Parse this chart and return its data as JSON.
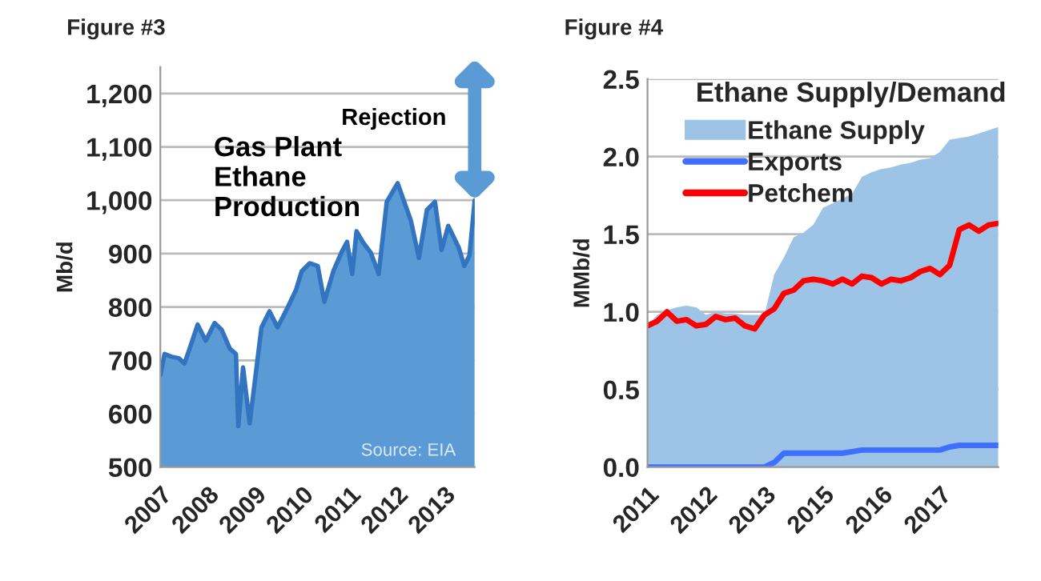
{
  "chart_data": [
    {
      "type": "area",
      "title": "Figure #3",
      "ylabel": "Mb/d",
      "annotations": [
        "Gas Plant\nEthane\nProduction",
        "Rejection",
        "Source: EIA"
      ],
      "series": [
        {
          "color": "#5b9bd5",
          "x": [
            2007,
            2007.09,
            2007.23,
            2007.39,
            2007.51,
            2007.62,
            2007.79,
            2007.96,
            2008.15,
            2008.3,
            2008.47,
            2008.6,
            2008.65,
            2008.75,
            2008.89,
            2009.14,
            2009.31,
            2009.48,
            2009.71,
            2009.87,
            2009.99,
            2010.16,
            2010.33,
            2010.47,
            2010.66,
            2010.83,
            2010.95,
            2011.06,
            2011.15,
            2011.28,
            2011.45,
            2011.62,
            2011.79,
            2012.02,
            2012.3,
            2012.47,
            2012.64,
            2012.81,
            2012.95,
            2013.09,
            2013.31,
            2013.43,
            2013.54,
            2013.65
          ],
          "values": [
            672,
            712,
            707,
            704,
            694,
            722,
            767,
            737,
            770,
            757,
            722,
            712,
            577,
            687,
            582,
            762,
            792,
            762,
            802,
            832,
            867,
            882,
            877,
            810,
            867,
            902,
            922,
            862,
            942,
            922,
            902,
            862,
            997,
            1032,
            962,
            892,
            982,
            997,
            907,
            952,
            912,
            877,
            897,
            1000
          ]
        }
      ],
      "xlim": [
        2007,
        2013.65
      ],
      "xticks": [
        2007,
        2008,
        2009,
        2010,
        2011,
        2012,
        2013
      ],
      "ylim": [
        500,
        1250
      ],
      "yticks": [
        500,
        600,
        700,
        800,
        900,
        {
          "value": 1000,
          "label": "1,000"
        },
        {
          "value": 1100,
          "label": "1,100"
        },
        {
          "value": 1200,
          "label": "1,200"
        }
      ],
      "grid": "y",
      "legend": false
    },
    {
      "type": "area",
      "title": "Figure #4",
      "subtitle": "Ethane Supply/Demand",
      "ylabel": "MMb/d",
      "series": [
        {
          "name": "Ethane Supply",
          "type": "area",
          "color": "#9dc3e6",
          "values": [
            0.91,
            0.98,
            1.01,
            1.03,
            1.04,
            1.03,
            0.98,
            1.0,
            0.99,
            0.99,
            0.98,
            0.98,
            0.98,
            1.24,
            1.35,
            1.48,
            1.51,
            1.56,
            1.67,
            1.7,
            1.73,
            1.76,
            1.87,
            1.9,
            1.92,
            1.93,
            1.95,
            1.96,
            1.98,
            1.99,
            2.03,
            2.11,
            2.12,
            2.13,
            2.15,
            2.17,
            2.19
          ]
        },
        {
          "name": "Exports",
          "type": "line",
          "color": "#3f6fff",
          "values": [
            0,
            0,
            0,
            0,
            0,
            0,
            0,
            0,
            0,
            0,
            0,
            0,
            0,
            0.03,
            0.09,
            0.09,
            0.09,
            0.09,
            0.09,
            0.09,
            0.09,
            0.1,
            0.11,
            0.11,
            0.11,
            0.11,
            0.11,
            0.11,
            0.11,
            0.11,
            0.11,
            0.13,
            0.14,
            0.14,
            0.14,
            0.14,
            0.14
          ]
        },
        {
          "name": "Petchem",
          "type": "line",
          "color": "#ff0000",
          "values": [
            0.91,
            0.94,
            1.0,
            0.94,
            0.95,
            0.91,
            0.92,
            0.97,
            0.95,
            0.96,
            0.91,
            0.89,
            0.98,
            1.02,
            1.12,
            1.14,
            1.2,
            1.21,
            1.2,
            1.18,
            1.21,
            1.18,
            1.23,
            1.22,
            1.18,
            1.21,
            1.2,
            1.22,
            1.26,
            1.28,
            1.24,
            1.3,
            1.53,
            1.56,
            1.52,
            1.56,
            1.57
          ]
        }
      ],
      "categories": [
        "2011",
        null,
        null,
        null,
        null,
        null,
        "2012",
        null,
        null,
        null,
        null,
        null,
        "2013",
        null,
        null,
        null,
        null,
        null,
        "2015",
        null,
        null,
        null,
        null,
        null,
        "2016",
        null,
        null,
        null,
        null,
        null,
        "2017",
        null,
        null,
        null,
        null,
        null,
        null
      ],
      "ylim": [
        0,
        2.5
      ],
      "yticks": [
        {
          "value": 0,
          "label": "0.0"
        },
        {
          "value": 0.5,
          "label": "0.5"
        },
        {
          "value": 1,
          "label": "1.0"
        },
        {
          "value": 1.5,
          "label": "1.5"
        },
        {
          "value": 2,
          "label": "2.0"
        },
        {
          "value": 2.5,
          "label": "2.5"
        }
      ],
      "grid": "y",
      "legend": "top left"
    }
  ]
}
